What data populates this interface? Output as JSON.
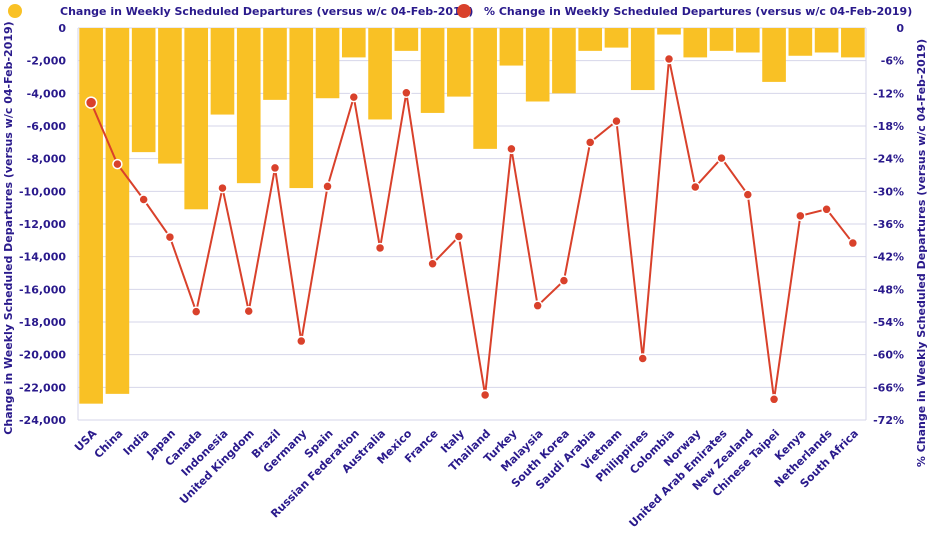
{
  "chart_data": {
    "type": "bar",
    "categories": [
      "USA",
      "China",
      "India",
      "Japan",
      "Canada",
      "Indonesia",
      "United Kingdom",
      "Brazil",
      "Germany",
      "Spain",
      "Russian Federation",
      "Australia",
      "Mexico",
      "France",
      "Italy",
      "Thailand",
      "Turkey",
      "Malaysia",
      "South Korea",
      "Saudi Arabia",
      "Vietnam",
      "Philippines",
      "Colombia",
      "Norway",
      "United Arab Emirates",
      "New Zealand",
      "Chinese Taipei",
      "Kenya",
      "Netherlands",
      "South Africa"
    ],
    "series": [
      {
        "name": "Change in Weekly Scheduled Departures (versus w/c 04-Feb-2019)",
        "type": "bar",
        "axis": "left",
        "color": "#F9C125",
        "values": [
          -23000,
          -22400,
          -7600,
          -8300,
          -11100,
          -5300,
          -9500,
          -4400,
          -9800,
          -4300,
          -1800,
          -5600,
          -1400,
          -5200,
          -4200,
          -7400,
          -2300,
          -4500,
          -4000,
          -1400,
          -1200,
          -3800,
          -400,
          -1800,
          -1400,
          -1500,
          -3300,
          -1700,
          -1500,
          -1800
        ]
      },
      {
        "name": "% Change in Weekly Scheduled Departures (versus w/c 04-Feb-2019)",
        "type": "line",
        "axis": "right",
        "color": "#D9412B",
        "values": [
          -13.7,
          -25.0,
          -31.5,
          -38.4,
          -52.1,
          -29.4,
          -52.0,
          -25.7,
          -57.5,
          -29.1,
          -12.7,
          -40.4,
          -11.9,
          -43.3,
          -38.3,
          -67.4,
          -22.2,
          -51.0,
          -46.4,
          -21.0,
          -17.1,
          -60.7,
          -5.7,
          -29.2,
          -23.9,
          -30.6,
          -68.2,
          -34.5,
          -33.3,
          -39.5
        ]
      }
    ],
    "left_axis": {
      "title": "Change in Weekly Scheduled Departures (versus w/c 04-Feb-2019)",
      "ylim": [
        -24000,
        0
      ],
      "ticks": [
        "0",
        "-2,000",
        "-4,000",
        "-6,000",
        "-8,000",
        "-10,000",
        "-12,000",
        "-14,000",
        "-16,000",
        "-18,000",
        "-20,000",
        "-22,000",
        "-24,000"
      ]
    },
    "right_axis": {
      "title": "% Change in Weekly Scheduled Departures (versus w/c 04-Feb-2019)",
      "ylim": [
        -72,
        0
      ],
      "ticks": [
        "0",
        "-6%",
        "-12%",
        "-18%",
        "-24%",
        "-30%",
        "-36%",
        "-42%",
        "-48%",
        "-54%",
        "-60%",
        "-66%",
        "-72%"
      ]
    },
    "grid": true,
    "legend_position": "top",
    "axis_text_color": "#2A1A8C",
    "grid_color": "#D6D6EA"
  }
}
